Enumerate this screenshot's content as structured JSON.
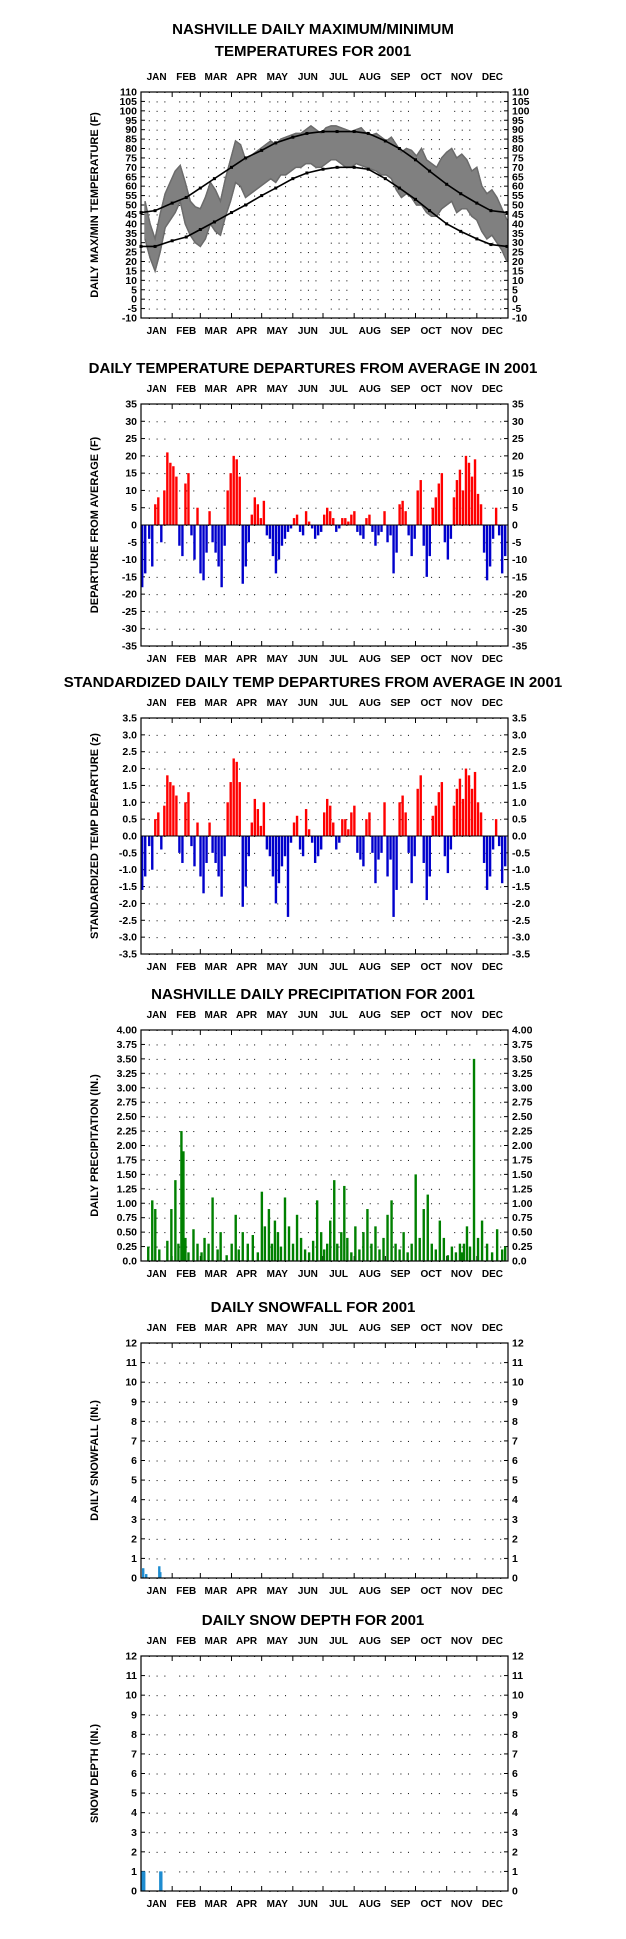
{
  "months": [
    "JAN",
    "FEB",
    "MAR",
    "APR",
    "MAY",
    "JUN",
    "JUL",
    "AUG",
    "SEP",
    "OCT",
    "NOV",
    "DEC"
  ],
  "colors": {
    "red": "#ff0000",
    "blue": "#0000cc",
    "green": "#008000",
    "gray": "#808080",
    "snow": "#1e8cd0",
    "black": "#000000"
  },
  "chart_data": [
    {
      "type": "line",
      "title": [
        "NASHVILLE DAILY MAXIMUM/MINIMUM",
        "TEMPERATURES FOR 2001"
      ],
      "ylabel": "DAILY MAX/MIN TEMPERATURE (F)",
      "ylim": [
        -10,
        110
      ],
      "yticks": [
        "110",
        "105",
        "100",
        "95",
        "90",
        "85",
        "80",
        "75",
        "70",
        "65",
        "60",
        "55",
        "50",
        "45",
        "40",
        "35",
        "30",
        "25",
        "20",
        "15",
        "10",
        "5",
        "0",
        "-5",
        "-10"
      ],
      "x_unit": "day of year",
      "series": [
        {
          "style": "normal max",
          "x": [
            1,
            15,
            32,
            46,
            60,
            74,
            91,
            105,
            121,
            135,
            152,
            166,
            182,
            196,
            213,
            227,
            244,
            258,
            274,
            288,
            305,
            319,
            335,
            349,
            365
          ],
          "values": [
            46,
            47,
            51,
            54,
            59,
            64,
            70,
            75,
            79,
            83,
            86,
            88,
            89,
            89,
            89,
            88,
            84,
            80,
            74,
            68,
            61,
            56,
            51,
            47,
            46
          ]
        },
        {
          "style": "normal min",
          "x": [
            1,
            15,
            32,
            46,
            60,
            74,
            91,
            105,
            121,
            135,
            152,
            166,
            182,
            196,
            213,
            227,
            244,
            258,
            274,
            288,
            305,
            319,
            335,
            349,
            365
          ],
          "values": [
            28,
            28,
            31,
            33,
            37,
            41,
            46,
            50,
            55,
            59,
            64,
            67,
            69,
            70,
            70,
            69,
            64,
            59,
            53,
            47,
            40,
            36,
            32,
            29,
            28
          ]
        },
        {
          "style": "observed max",
          "x": [
            5,
            10,
            15,
            20,
            25,
            30,
            35,
            40,
            45,
            50,
            55,
            60,
            65,
            70,
            75,
            80,
            85,
            90,
            95,
            100,
            105,
            110,
            115,
            120,
            125,
            130,
            135,
            140,
            145,
            150,
            155,
            160,
            165,
            170,
            175,
            180,
            185,
            190,
            195,
            200,
            205,
            210,
            215,
            220,
            225,
            230,
            235,
            240,
            245,
            250,
            255,
            260,
            265,
            270,
            275,
            280,
            285,
            290,
            295,
            300,
            305,
            310,
            315,
            320,
            325,
            330,
            335,
            340,
            345,
            350,
            355,
            360,
            365
          ],
          "values": [
            52,
            40,
            32,
            45,
            56,
            62,
            68,
            71,
            62,
            52,
            49,
            48,
            54,
            62,
            58,
            52,
            64,
            74,
            84,
            82,
            74,
            76,
            78,
            80,
            82,
            84,
            82,
            85,
            86,
            87,
            88,
            88,
            90,
            92,
            90,
            88,
            91,
            92,
            92,
            91,
            90,
            89,
            90,
            91,
            88,
            87,
            88,
            86,
            84,
            86,
            82,
            78,
            80,
            79,
            76,
            80,
            74,
            72,
            70,
            75,
            78,
            80,
            75,
            77,
            74,
            68,
            70,
            60,
            56,
            58,
            54,
            48,
            42
          ]
        },
        {
          "style": "observed min",
          "x": [
            5,
            10,
            15,
            20,
            25,
            30,
            35,
            40,
            45,
            50,
            55,
            60,
            65,
            70,
            75,
            80,
            85,
            90,
            95,
            100,
            105,
            110,
            115,
            120,
            125,
            130,
            135,
            140,
            145,
            150,
            155,
            160,
            165,
            170,
            175,
            180,
            185,
            190,
            195,
            200,
            205,
            210,
            215,
            220,
            225,
            230,
            235,
            240,
            245,
            250,
            255,
            260,
            265,
            270,
            275,
            280,
            285,
            290,
            295,
            300,
            305,
            310,
            315,
            320,
            325,
            330,
            335,
            340,
            345,
            350,
            355,
            360,
            365
          ],
          "values": [
            32,
            22,
            15,
            25,
            38,
            42,
            46,
            52,
            40,
            34,
            30,
            28,
            32,
            40,
            36,
            34,
            44,
            52,
            62,
            60,
            54,
            56,
            58,
            60,
            62,
            64,
            62,
            66,
            66,
            68,
            70,
            70,
            72,
            72,
            70,
            70,
            72,
            74,
            74,
            72,
            70,
            70,
            72,
            71,
            70,
            69,
            68,
            66,
            66,
            64,
            58,
            54,
            56,
            54,
            50,
            50,
            46,
            44,
            44,
            48,
            50,
            52,
            46,
            48,
            48,
            44,
            42,
            36,
            32,
            34,
            30,
            26,
            20
          ]
        }
      ]
    },
    {
      "type": "bar",
      "title": [
        "DAILY TEMPERATURE DEPARTURES FROM AVERAGE IN 2001"
      ],
      "ylabel": "DEPARTURE FROM AVERAGE (F)",
      "ylim": [
        -35,
        35
      ],
      "yticks": [
        "35",
        "30",
        "25",
        "20",
        "15",
        "10",
        "5",
        "0",
        "-5",
        "-10",
        "-15",
        "-20",
        "-25",
        "-30",
        "-35"
      ],
      "x_unit": "day of year",
      "x": [
        2,
        5,
        9,
        12,
        15,
        18,
        21,
        24,
        27,
        30,
        33,
        36,
        39,
        42,
        45,
        48,
        51,
        54,
        57,
        60,
        63,
        66,
        69,
        72,
        75,
        78,
        81,
        84,
        87,
        90,
        93,
        96,
        99,
        102,
        105,
        108,
        111,
        114,
        117,
        120,
        123,
        126,
        129,
        132,
        135,
        138,
        141,
        144,
        147,
        150,
        153,
        156,
        159,
        162,
        165,
        168,
        171,
        174,
        177,
        180,
        183,
        186,
        189,
        192,
        195,
        198,
        201,
        204,
        207,
        210,
        213,
        216,
        219,
        222,
        225,
        228,
        231,
        234,
        237,
        240,
        243,
        246,
        249,
        252,
        255,
        258,
        261,
        264,
        267,
        270,
        273,
        276,
        279,
        282,
        285,
        288,
        291,
        294,
        297,
        300,
        303,
        306,
        309,
        312,
        315,
        318,
        321,
        324,
        327,
        330,
        333,
        336,
        339,
        342,
        345,
        348,
        351,
        354,
        357,
        360,
        363
      ],
      "values": [
        -18,
        -14,
        -4,
        -12,
        6,
        8,
        -5,
        10,
        21,
        18,
        17,
        14,
        -6,
        -9,
        12,
        15,
        -3,
        -10,
        5,
        -14,
        -16,
        -8,
        4,
        -5,
        -8,
        -12,
        -18,
        -6,
        10,
        15,
        20,
        19,
        14,
        -17,
        -12,
        -5,
        3,
        8,
        6,
        2,
        7,
        -3,
        -4,
        -9,
        -14,
        -10,
        -6,
        -4,
        -2,
        -1,
        2,
        3,
        -2,
        -3,
        4,
        1,
        -1,
        -4,
        -3,
        -2,
        3,
        5,
        4,
        2,
        -2,
        -1,
        2,
        2,
        1,
        3,
        4,
        -2,
        -3,
        -4,
        2,
        3,
        -2,
        -6,
        -3,
        -2,
        4,
        -5,
        -3,
        -14,
        -8,
        6,
        7,
        4,
        -3,
        -9,
        -4,
        10,
        13,
        -6,
        -15,
        -9,
        5,
        8,
        12,
        15,
        -5,
        -10,
        -4,
        8,
        13,
        16,
        10,
        20,
        18,
        14,
        19,
        9,
        6,
        -8,
        -16,
        -12,
        -4,
        5,
        -3,
        -14,
        -9
      ],
      "pos_color": "red",
      "neg_color": "blue"
    },
    {
      "type": "bar",
      "title": [
        "STANDARDIZED DAILY TEMP DEPARTURES FROM AVERAGE IN 2001"
      ],
      "ylabel": "STANDARDIZED TEMP DEPARTURE (z)",
      "ylim": [
        -3.5,
        3.5
      ],
      "yticks": [
        "3.5",
        "3.0",
        "2.5",
        "2.0",
        "1.5",
        "1.0",
        "0.5",
        "0.0",
        "-0.5",
        "-1.0",
        "-1.5",
        "-2.0",
        "-2.5",
        "-3.0",
        "-3.5"
      ],
      "x_unit": "day of year",
      "x": [
        2,
        5,
        9,
        12,
        15,
        18,
        21,
        24,
        27,
        30,
        33,
        36,
        39,
        42,
        45,
        48,
        51,
        54,
        57,
        60,
        63,
        66,
        69,
        72,
        75,
        78,
        81,
        84,
        87,
        90,
        93,
        96,
        99,
        102,
        105,
        108,
        111,
        114,
        117,
        120,
        123,
        126,
        129,
        132,
        135,
        138,
        141,
        144,
        147,
        150,
        153,
        156,
        159,
        162,
        165,
        168,
        171,
        174,
        177,
        180,
        183,
        186,
        189,
        192,
        195,
        198,
        201,
        204,
        207,
        210,
        213,
        216,
        219,
        222,
        225,
        228,
        231,
        234,
        237,
        240,
        243,
        246,
        249,
        252,
        255,
        258,
        261,
        264,
        267,
        270,
        273,
        276,
        279,
        282,
        285,
        288,
        291,
        294,
        297,
        300,
        303,
        306,
        309,
        312,
        315,
        318,
        321,
        324,
        327,
        330,
        333,
        336,
        339,
        342,
        345,
        348,
        351,
        354,
        357,
        360,
        363
      ],
      "values": [
        -1.6,
        -1.2,
        -0.3,
        -1.0,
        0.5,
        0.7,
        -0.4,
        0.9,
        1.8,
        1.6,
        1.5,
        1.2,
        -0.5,
        -0.8,
        1.0,
        1.3,
        -0.3,
        -0.9,
        0.4,
        -1.2,
        -1.7,
        -0.8,
        0.4,
        -0.5,
        -0.8,
        -1.2,
        -1.8,
        -0.6,
        1.0,
        1.6,
        2.3,
        2.2,
        1.6,
        -2.1,
        -1.5,
        -0.6,
        0.4,
        1.1,
        0.8,
        0.3,
        1.0,
        -0.4,
        -0.6,
        -1.2,
        -2.0,
        -1.4,
        -0.9,
        -0.6,
        -2.4,
        -0.2,
        0.4,
        0.6,
        -0.4,
        -0.6,
        0.8,
        0.2,
        -0.2,
        -0.8,
        -0.6,
        -0.4,
        0.7,
        1.1,
        0.9,
        0.4,
        -0.4,
        -0.2,
        0.5,
        0.5,
        0.2,
        0.7,
        0.9,
        -0.5,
        -0.7,
        -0.9,
        0.5,
        0.7,
        -0.5,
        -1.4,
        -0.7,
        -0.5,
        1.0,
        -1.2,
        -0.7,
        -2.4,
        -1.6,
        1.0,
        1.2,
        0.7,
        -0.5,
        -1.4,
        -0.6,
        1.4,
        1.8,
        -0.8,
        -1.9,
        -1.2,
        0.6,
        0.9,
        1.3,
        1.6,
        -0.6,
        -1.1,
        -0.4,
        0.9,
        1.4,
        1.7,
        1.1,
        2.0,
        1.8,
        1.4,
        1.9,
        1.0,
        0.7,
        -0.8,
        -1.6,
        -1.2,
        -0.4,
        0.5,
        -0.3,
        -1.4,
        -0.9
      ],
      "pos_color": "red",
      "neg_color": "blue"
    },
    {
      "type": "bar",
      "title": [
        "NASHVILLE DAILY PRECIPITATION FOR 2001"
      ],
      "ylabel": "DAILY PRECIPITATION (IN.)",
      "ylim": [
        0,
        4
      ],
      "yticks": [
        "4.00",
        "3.75",
        "3.50",
        "3.25",
        "3.00",
        "2.75",
        "2.50",
        "2.25",
        "2.00",
        "1.75",
        "1.50",
        "1.25",
        "1.00",
        "0.75",
        "0.50",
        "0.25",
        "0.0"
      ],
      "x_unit": "day of year",
      "x": [
        8,
        12,
        15,
        19,
        27,
        31,
        35,
        38,
        41,
        43,
        45,
        48,
        53,
        57,
        61,
        64,
        68,
        72,
        77,
        80,
        86,
        91,
        95,
        98,
        102,
        107,
        112,
        117,
        121,
        124,
        128,
        131,
        134,
        137,
        140,
        144,
        148,
        152,
        156,
        160,
        164,
        168,
        172,
        176,
        180,
        183,
        186,
        189,
        193,
        196,
        200,
        203,
        206,
        210,
        214,
        218,
        222,
        226,
        230,
        234,
        238,
        242,
        246,
        250,
        254,
        258,
        262,
        266,
        270,
        274,
        278,
        282,
        286,
        290,
        294,
        298,
        302,
        306,
        310,
        314,
        318,
        320,
        322,
        325,
        328,
        332,
        336,
        340,
        345,
        350,
        355,
        360,
        363
      ],
      "values": [
        0.25,
        1.05,
        0.9,
        0.2,
        0.35,
        0.9,
        1.4,
        0.3,
        2.25,
        1.9,
        0.4,
        0.15,
        0.55,
        0.3,
        0.15,
        0.4,
        0.3,
        1.1,
        0.2,
        0.5,
        0.1,
        0.3,
        0.8,
        0.2,
        0.5,
        0.3,
        0.45,
        0.15,
        1.2,
        0.6,
        0.9,
        0.3,
        0.7,
        0.5,
        0.25,
        1.1,
        0.6,
        0.3,
        0.8,
        0.4,
        0.2,
        0.15,
        0.35,
        1.05,
        0.5,
        0.2,
        0.3,
        0.7,
        1.4,
        0.3,
        0.5,
        1.3,
        0.4,
        0.15,
        0.6,
        0.2,
        0.5,
        0.9,
        0.3,
        0.6,
        0.2,
        0.4,
        0.8,
        1.05,
        0.3,
        0.2,
        0.5,
        0.15,
        0.3,
        1.5,
        0.4,
        0.9,
        1.15,
        0.3,
        0.2,
        0.7,
        0.4,
        0.1,
        0.25,
        0.15,
        0.3,
        0.15,
        0.3,
        0.6,
        0.25,
        3.5,
        0.4,
        0.7,
        0.3,
        0.15,
        0.55,
        0.2,
        0.25
      ],
      "color": "green"
    },
    {
      "type": "bar",
      "title": [
        "DAILY SNOWFALL FOR 2001"
      ],
      "ylabel": "DAILY SNOWFALL (IN.)",
      "ylim": [
        0,
        12
      ],
      "yticks": [
        "12",
        "11",
        "10",
        "9",
        "8",
        "7",
        "6",
        "5",
        "4",
        "3",
        "2",
        "1",
        "0"
      ],
      "x_unit": "day of year",
      "x": [
        3,
        6,
        19,
        20
      ],
      "values": [
        0.5,
        0.2,
        0.6,
        0.3
      ],
      "color": "snow"
    },
    {
      "type": "bar",
      "title": [
        "DAILY SNOW DEPTH FOR 2001"
      ],
      "ylabel": "SNOW DEPTH (IN.)",
      "ylim": [
        0,
        12
      ],
      "yticks": [
        "12",
        "11",
        "10",
        "9",
        "8",
        "7",
        "6",
        "5",
        "4",
        "3",
        "2",
        "1",
        "0"
      ],
      "x_unit": "day of year",
      "x": [
        2,
        3,
        4,
        20,
        21
      ],
      "values": [
        1,
        1,
        1,
        1,
        1
      ],
      "color": "snow"
    }
  ]
}
